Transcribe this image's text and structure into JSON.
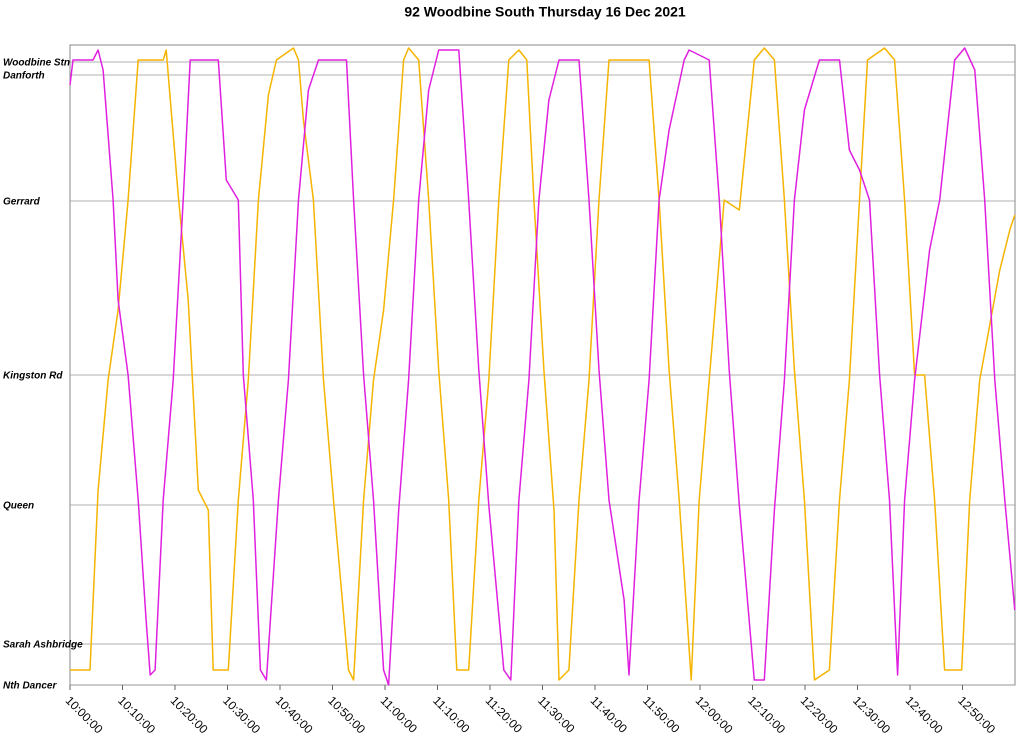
{
  "chart_data": {
    "type": "line",
    "title": "92 Woodbine South Thursday 16 Dec 2021",
    "xlim": [
      "10:00:00",
      "13:00:00"
    ],
    "xticks": [
      "10:00:00",
      "10:10:00",
      "10:20:00",
      "10:30:00",
      "10:40:00",
      "10:50:00",
      "11:00:00",
      "11:10:00",
      "11:20:00",
      "11:30:00",
      "11:40:00",
      "11:50:00",
      "12:00:00",
      "12:10:00",
      "12:20:00",
      "12:30:00",
      "12:40:00",
      "12:50:00"
    ],
    "ylim": [
      0,
      640
    ],
    "yticks": [
      {
        "value": 623,
        "label": "Woodbine Stn"
      },
      {
        "value": 610,
        "label": "Danforth"
      },
      {
        "value": 484,
        "label": "Gerrard"
      },
      {
        "value": 310,
        "label": "Kingston Rd"
      },
      {
        "value": 180,
        "label": "Queen"
      },
      {
        "value": 41,
        "label": "Sarah Ashbridge"
      },
      {
        "value": 0,
        "label": "Nth Dancer"
      }
    ],
    "grid": true,
    "series": [
      {
        "color": "#f5b400",
        "x": [
          "10:00:00",
          "10:03:49",
          "10:05:21",
          "10:07:15",
          "10:09:10",
          "10:11:04",
          "10:12:59",
          "10:17:45",
          "10:18:19",
          "10:20:37",
          "10:22:31",
          "10:24:26",
          "10:26:20",
          "10:27:17",
          "10:30:09",
          "10:32:04",
          "10:33:58",
          "10:35:53",
          "10:37:47",
          "10:39:19",
          "10:42:34",
          "10:43:31",
          "10:44:28",
          "10:46:22",
          "10:48:17",
          "10:50:11",
          "10:53:03",
          "10:54:01",
          "10:55:55",
          "10:57:49",
          "10:59:44",
          "11:01:38",
          "11:03:33",
          "11:04:30",
          "11:06:25",
          "11:08:19",
          "11:10:14",
          "11:12:08",
          "11:13:40",
          "11:15:57",
          "11:17:52",
          "11:19:46",
          "11:21:41",
          "11:23:35",
          "11:25:30",
          "11:27:01",
          "11:28:22",
          "11:30:16",
          "11:32:11",
          "11:33:08",
          "11:35:02",
          "11:36:57",
          "11:38:51",
          "11:40:46",
          "11:42:40",
          "11:50:18",
          "11:52:13",
          "11:54:07",
          "11:56:02",
          "11:58:19",
          "11:59:51",
          "12:01:45",
          "12:04:37",
          "12:07:29",
          "12:10:21",
          "12:12:15",
          "12:14:10",
          "12:16:04",
          "12:17:59",
          "12:19:53",
          "12:21:48",
          "12:24:39",
          "12:26:34",
          "12:28:28",
          "12:30:23",
          "12:31:54",
          "12:35:09",
          "12:37:04",
          "12:38:58",
          "12:40:53",
          "12:42:47",
          "12:44:41",
          "12:46:36",
          "12:49:51",
          "12:51:22",
          "12:53:17",
          "12:57:06",
          "12:59:01",
          "12:59:58"
        ],
        "values": [
          15,
          15,
          195,
          305,
          375,
          485,
          625,
          625,
          635,
          490,
          385,
          195,
          175,
          15,
          15,
          185,
          305,
          485,
          590,
          625,
          637,
          625,
          565,
          485,
          305,
          185,
          15,
          5,
          185,
          305,
          375,
          485,
          625,
          637,
          625,
          485,
          315,
          185,
          15,
          15,
          185,
          305,
          485,
          625,
          635,
          625,
          485,
          315,
          175,
          5,
          15,
          185,
          305,
          485,
          625,
          625,
          485,
          315,
          185,
          5,
          185,
          305,
          485,
          475,
          625,
          637,
          625,
          485,
          315,
          185,
          5,
          15,
          185,
          305,
          485,
          625,
          637,
          625,
          485,
          310,
          310,
          185,
          15,
          15,
          185,
          305,
          415,
          455,
          470
        ]
      },
      {
        "color": "#e020e0",
        "x": [
          "10:00:00",
          "10:00:34",
          "10:04:23",
          "10:05:21",
          "10:06:18",
          "10:08:12",
          "10:09:10",
          "10:11:04",
          "10:12:59",
          "10:14:30",
          "10:15:16",
          "10:16:13",
          "10:17:45",
          "10:19:39",
          "10:21:34",
          "10:22:54",
          "10:28:15",
          "10:29:46",
          "10:32:04",
          "10:33:01",
          "10:34:55",
          "10:36:16",
          "10:37:24",
          "10:39:42",
          "10:41:36",
          "10:43:31",
          "10:45:25",
          "10:47:20",
          "10:52:40",
          "10:54:01",
          "10:55:55",
          "10:57:49",
          "10:59:44",
          "11:00:41",
          "11:02:36",
          "11:04:30",
          "11:06:25",
          "11:08:19",
          "11:10:14",
          "11:14:03",
          "11:15:57",
          "11:17:52",
          "11:19:46",
          "11:22:38",
          "11:23:58",
          "11:25:30",
          "11:27:24",
          "11:29:19",
          "11:31:13",
          "11:33:08",
          "11:36:57",
          "11:38:51",
          "11:40:46",
          "11:42:40",
          "11:45:32",
          "11:46:29",
          "11:48:24",
          "11:50:18",
          "11:52:13",
          "11:54:07",
          "11:56:59",
          "11:57:56",
          "12:01:45",
          "12:03:40",
          "12:05:34",
          "12:07:29",
          "12:10:21",
          "12:12:15",
          "12:14:10",
          "12:16:04",
          "12:17:59",
          "12:19:53",
          "12:22:45",
          "12:26:34",
          "12:28:28",
          "12:30:23",
          "12:32:17",
          "12:34:12",
          "12:36:06",
          "12:37:38",
          "12:38:58",
          "12:40:53",
          "12:43:44",
          "12:45:39",
          "12:48:31",
          "12:50:25",
          "12:52:20",
          "12:54:14",
          "12:56:09",
          "12:58:03",
          "12:59:58"
        ],
        "values": [
          600,
          625,
          625,
          635,
          615,
          485,
          385,
          310,
          185,
          65,
          10,
          15,
          185,
          305,
          485,
          625,
          625,
          505,
          485,
          310,
          185,
          15,
          5,
          185,
          305,
          485,
          595,
          625,
          625,
          485,
          310,
          185,
          15,
          0,
          175,
          305,
          485,
          595,
          635,
          635,
          485,
          315,
          180,
          15,
          5,
          185,
          305,
          485,
          585,
          625,
          625,
          485,
          315,
          185,
          85,
          10,
          185,
          305,
          485,
          555,
          625,
          635,
          625,
          485,
          315,
          180,
          5,
          5,
          175,
          305,
          485,
          575,
          625,
          625,
          535,
          515,
          485,
          310,
          185,
          10,
          185,
          305,
          435,
          485,
          625,
          637,
          615,
          485,
          305,
          185,
          75
        ]
      }
    ]
  }
}
